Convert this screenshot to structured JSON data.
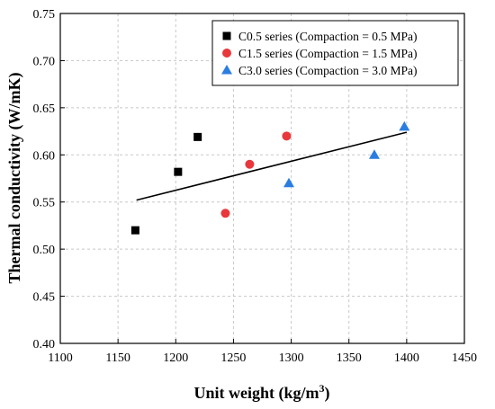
{
  "chart_data": {
    "type": "scatter",
    "xlabel": "Unit weight (kg/m",
    "xlabel_sup": "3",
    "xlabel_end": ")",
    "ylabel": "Thermal conductivity (W/mK)",
    "xlim": [
      1100,
      1450
    ],
    "ylim": [
      0.4,
      0.75
    ],
    "xticks": [
      "1100",
      "1150",
      "1200",
      "1250",
      "1300",
      "1350",
      "1400",
      "1450"
    ],
    "yticks": [
      "0.40",
      "0.45",
      "0.50",
      "0.55",
      "0.60",
      "0.65",
      "0.70",
      "0.75"
    ],
    "grid": true,
    "legend_position": "top-right",
    "series": [
      {
        "name": "C0.5 series (Compaction = 0.5 MPa)",
        "marker": "square",
        "color": "#000000",
        "points": [
          [
            1165,
            0.52
          ],
          [
            1202,
            0.582
          ],
          [
            1219,
            0.619
          ]
        ]
      },
      {
        "name": "C1.5 series (Compaction = 1.5 MPa)",
        "marker": "circle",
        "color": "#e8383c",
        "points": [
          [
            1243,
            0.538
          ],
          [
            1264,
            0.59
          ],
          [
            1296,
            0.62
          ]
        ]
      },
      {
        "name": "C3.0 series (Compaction = 3.0 MPa)",
        "marker": "triangle",
        "color": "#2a7de1",
        "points": [
          [
            1298,
            0.57
          ],
          [
            1372,
            0.6
          ],
          [
            1398,
            0.63
          ]
        ]
      }
    ],
    "trendline": {
      "x": [
        1166,
        1400
      ],
      "y": [
        0.552,
        0.624
      ],
      "color": "#000000"
    }
  }
}
